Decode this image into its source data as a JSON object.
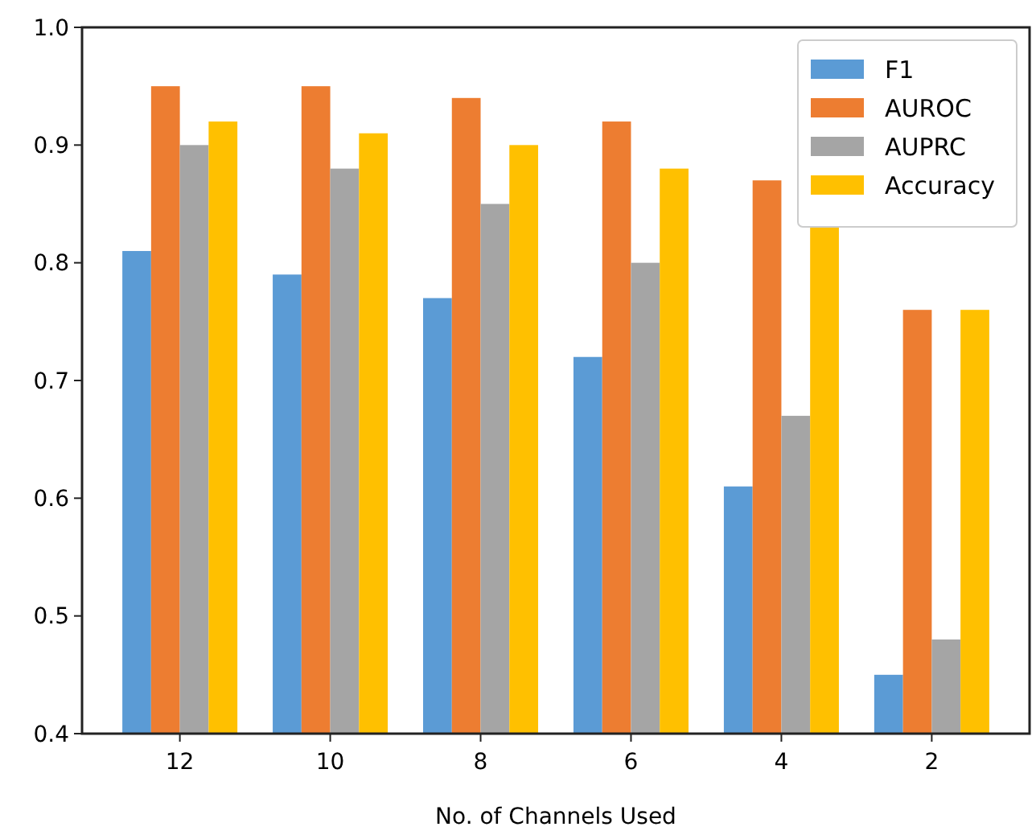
{
  "chart_data": {
    "type": "bar",
    "xlabel": "No. of Channels Used",
    "categories": [
      "12",
      "10",
      "8",
      "6",
      "4",
      "2"
    ],
    "series": [
      {
        "name": "F1",
        "color": "#5b9bd5",
        "values": [
          0.81,
          0.79,
          0.77,
          0.72,
          0.61,
          0.45
        ]
      },
      {
        "name": "AUROC",
        "color": "#ed7d31",
        "values": [
          0.95,
          0.95,
          0.94,
          0.92,
          0.87,
          0.76
        ]
      },
      {
        "name": "AUPRC",
        "color": "#a5a5a5",
        "values": [
          0.9,
          0.88,
          0.85,
          0.8,
          0.67,
          0.48
        ]
      },
      {
        "name": "Accuracy",
        "color": "#ffc000",
        "values": [
          0.92,
          0.91,
          0.9,
          0.88,
          0.83,
          0.76
        ]
      }
    ],
    "ylim": [
      0.4,
      1.0
    ],
    "yticks": [
      {
        "value": 0.4,
        "label": "0.4"
      },
      {
        "value": 0.5,
        "label": "0.5"
      },
      {
        "value": 0.6,
        "label": "0.6"
      },
      {
        "value": 0.7,
        "label": "0.7"
      },
      {
        "value": 0.8,
        "label": "0.8"
      },
      {
        "value": 0.9,
        "label": "0.9"
      },
      {
        "value": 1.0,
        "label": "1.0"
      }
    ],
    "legend": "top right",
    "grid": false
  }
}
